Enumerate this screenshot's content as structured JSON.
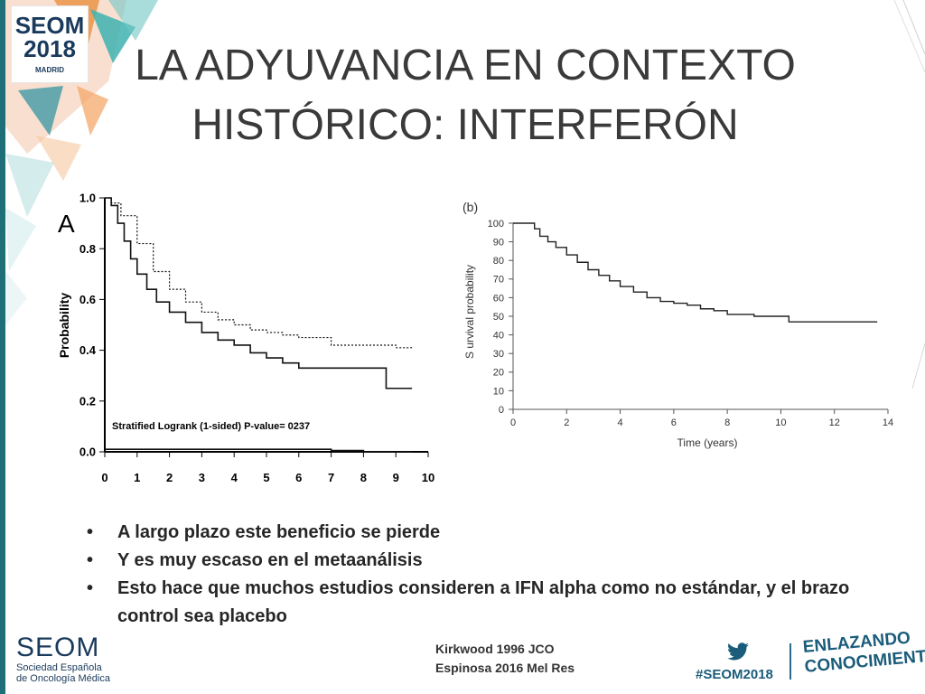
{
  "logo": {
    "line1": "SEOM",
    "line2": "2018",
    "line3": "MADRID"
  },
  "title": {
    "line1": "LA ADYUVANCIA EN CONTEXTO",
    "line2": "HISTÓRICO: INTERFERÓN"
  },
  "chart_data": [
    {
      "type": "line",
      "panel_label": "A",
      "ylabel": "Probability",
      "xlabel": "",
      "x_ticks": [
        "0",
        "1",
        "2",
        "3",
        "4",
        "5",
        "6",
        "7",
        "8",
        "9",
        "10"
      ],
      "y_ticks": [
        "0.0",
        "0.2",
        "0.4",
        "0.6",
        "0.8",
        "1.0"
      ],
      "xlim": [
        0,
        10
      ],
      "ylim": [
        0,
        1
      ],
      "annotation": "Stratified Logrank (1-sided) P-value= 0237",
      "grid": false,
      "series": [
        {
          "style": "dotted",
          "x": [
            0,
            0.2,
            0.5,
            1,
            1.5,
            2,
            2.5,
            3,
            3.5,
            4,
            4.5,
            5,
            5.5,
            6,
            7,
            8,
            9,
            9.5
          ],
          "y": [
            1.0,
            0.98,
            0.93,
            0.82,
            0.71,
            0.64,
            0.59,
            0.55,
            0.52,
            0.5,
            0.48,
            0.47,
            0.46,
            0.45,
            0.42,
            0.42,
            0.41,
            0.41
          ]
        },
        {
          "style": "solid",
          "x": [
            0,
            0.2,
            0.4,
            0.6,
            0.8,
            1,
            1.3,
            1.6,
            2,
            2.5,
            3,
            3.5,
            4,
            4.5,
            5,
            5.5,
            6,
            7,
            8,
            8.7,
            8.7,
            9.5
          ],
          "y": [
            1.0,
            0.97,
            0.9,
            0.83,
            0.76,
            0.7,
            0.64,
            0.59,
            0.55,
            0.51,
            0.47,
            0.44,
            0.42,
            0.39,
            0.37,
            0.35,
            0.33,
            0.33,
            0.33,
            0.33,
            0.25,
            0.25
          ]
        },
        {
          "style": "solid",
          "x": [
            0,
            3,
            5,
            7,
            8,
            9,
            9.5
          ],
          "y": [
            0.01,
            0.01,
            0.01,
            0.005,
            0.0,
            0.0,
            0.0
          ]
        }
      ]
    },
    {
      "type": "line",
      "panel_label": "(b)",
      "ylabel": "S urvival probability",
      "xlabel": "Time (years)",
      "x_ticks": [
        "0",
        "2",
        "4",
        "6",
        "8",
        "10",
        "12",
        "14"
      ],
      "y_ticks": [
        "0",
        "10",
        "20",
        "30",
        "40",
        "50",
        "60",
        "70",
        "80",
        "90",
        "100"
      ],
      "xlim": [
        0,
        14
      ],
      "ylim": [
        0,
        100
      ],
      "grid": false,
      "series": [
        {
          "style": "solid",
          "x": [
            0,
            0.5,
            0.8,
            1,
            1.3,
            1.6,
            2,
            2.4,
            2.8,
            3.2,
            3.6,
            4,
            4.5,
            5,
            5.5,
            6,
            6.5,
            7,
            7.5,
            8,
            9,
            10,
            10.3,
            11,
            12,
            13,
            13.6
          ],
          "y": [
            100,
            100,
            97,
            93,
            90,
            87,
            83,
            79,
            75,
            72,
            69,
            66,
            63,
            60,
            58,
            57,
            56,
            54,
            53,
            51,
            50,
            50,
            47,
            47,
            47,
            47,
            47
          ]
        }
      ]
    }
  ],
  "bullets": [
    "A largo plazo este beneficio se pierde",
    "Y es muy escaso en el metaanálisis",
    "Esto hace que muchos estudios consideren a IFN alpha como no estándar, y el brazo control sea placebo"
  ],
  "references": [
    "Kirkwood 1996 JCO",
    "Espinosa 2016 Mel Res"
  ],
  "footer": {
    "seom_name": "SEOM",
    "seom_sub1": "Sociedad Española",
    "seom_sub2": "de Oncología Médica",
    "hashtag": "#SEOM2018",
    "slogan1": "ENLAZANDO",
    "slogan2": "CONOCIMIENTO",
    "twitter_icon": "twitter-icon"
  },
  "colors": {
    "brand_navy": "#1a3a5c",
    "brand_teal": "#1a5c7a",
    "title": "#3a3a3a",
    "accent_orange": "#f08a3c",
    "accent_teal": "#3fb3b0"
  }
}
